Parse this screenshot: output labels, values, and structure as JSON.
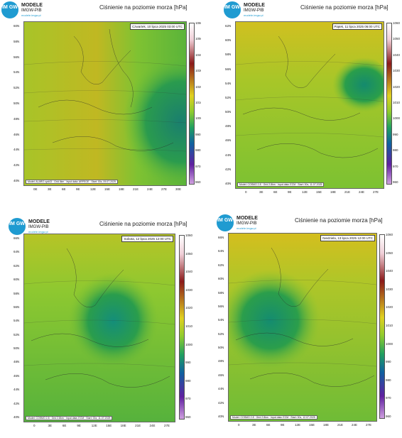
{
  "logo": {
    "badge": "IM GW",
    "line1": "MODELE",
    "line2": "IMGW-PIB",
    "line3": "modele.imgw.pl"
  },
  "title": "Ciśnienie na poziomie morza [hPa]",
  "panels": [
    {
      "date": "Czwartek, 10 lipca 2025 03:00 UTC",
      "footer": "Model: ALARO cycl43 · Grid 4km · Input data: ARPEGE · Start: 00z, 09.07.2025",
      "lat_labels": [
        "60N",
        "58N",
        "56N",
        "54N",
        "52N",
        "50N",
        "48N",
        "46N",
        "44N",
        "42N",
        "40N"
      ],
      "lon_labels": [
        "0E",
        "3E",
        "6E",
        "9E",
        "12E",
        "15E",
        "18E",
        "21E",
        "24E",
        "27E",
        "30E"
      ],
      "cbar_labels": [
        "1060",
        "1050",
        "1040",
        "1030",
        "1020",
        "1010",
        "1000",
        "990",
        "980",
        "970",
        "960"
      ]
    },
    {
      "date": "Piątek, 11 lipca 2025 06:00 UTC",
      "footer": "Model: COSMO 2.8 · Grid 2.8km · Input data: ECM · Start: 00z, 11.07.2025",
      "lat_labels": [
        "62N",
        "60N",
        "58N",
        "56N",
        "54N",
        "52N",
        "50N",
        "48N",
        "46N",
        "44N",
        "42N",
        "40N"
      ],
      "lon_labels": [
        "0",
        "3E",
        "6E",
        "9E",
        "12E",
        "15E",
        "18E",
        "21E",
        "24E",
        "27E"
      ],
      "cbar_labels": [
        "1060",
        "1050",
        "1040",
        "1030",
        "1020",
        "1010",
        "1000",
        "990",
        "980",
        "970",
        "960"
      ]
    },
    {
      "date": "Sobota, 12 lipca 2025 12:00 UTC",
      "footer": "Model: COSMO 2.8 · Grid 2.8km · Input data: ECM · Start: 00z, 11.07.2025",
      "lat_labels": [
        "66N",
        "64N",
        "62N",
        "60N",
        "58N",
        "56N",
        "54N",
        "52N",
        "50N",
        "48N",
        "46N",
        "44N",
        "42N",
        "40N"
      ],
      "lon_labels": [
        "0",
        "3E",
        "6E",
        "9E",
        "12E",
        "15E",
        "18E",
        "21E",
        "24E",
        "27E"
      ],
      "cbar_labels": [
        "1060",
        "1050",
        "1040",
        "1030",
        "1020",
        "1010",
        "1000",
        "990",
        "980",
        "970",
        "960"
      ]
    },
    {
      "date": "Niedziela, 13 lipca 2025 12:00 UTC",
      "footer": "Model: COSMO 2.8 · Grid 2.8km · Input data: ECM · Start: 00z, 12.07.2025",
      "lat_labels": [
        "66N",
        "64N",
        "62N",
        "60N",
        "58N",
        "56N",
        "54N",
        "52N",
        "50N",
        "48N",
        "46N",
        "44N",
        "42N",
        "40N"
      ],
      "lon_labels": [
        "0",
        "3E",
        "6E",
        "9E",
        "12E",
        "15E",
        "18E",
        "21E",
        "24E",
        "27E"
      ],
      "cbar_labels": [
        "1060",
        "1050",
        "1040",
        "1030",
        "1020",
        "1010",
        "1000",
        "990",
        "980",
        "970",
        "960"
      ]
    }
  ],
  "colors": {
    "ridge": "#c8c020",
    "mid": "#8fcb2e",
    "low": "#1e8f5a",
    "lowcore": "#1a7f6e"
  }
}
